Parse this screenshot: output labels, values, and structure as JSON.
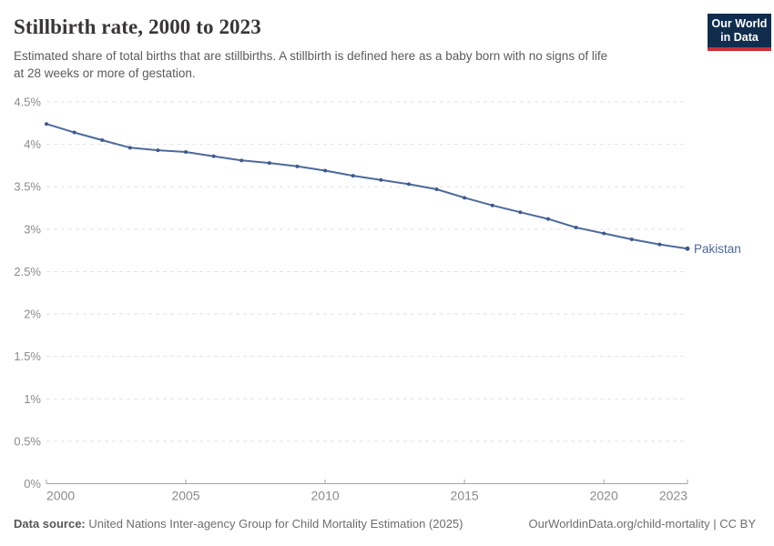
{
  "header": {
    "title": "Stillbirth rate, 2000 to 2023",
    "subtitle_lines": [
      "Estimated share of total births that are stillbirths. A stillbirth is defined here as a baby born with no signs of life",
      "at 28 weeks or more of gestation."
    ],
    "logo": {
      "line1": "Our World",
      "line2": "in Data",
      "bg_color": "#102d4e",
      "accent_color": "#cc2e37"
    }
  },
  "chart_data": {
    "type": "line",
    "title": "Stillbirth rate, 2000 to 2023",
    "xlabel": "",
    "ylabel": "",
    "xlim": [
      2000,
      2023
    ],
    "ylim": [
      0,
      4.5
    ],
    "grid": "horizontal-dashed",
    "legend_position": "end-of-line",
    "series": [
      {
        "name": "Pakistan",
        "color": "#4c6a9c",
        "marker_color": "#41598c",
        "x": [
          2000,
          2001,
          2002,
          2003,
          2004,
          2005,
          2006,
          2007,
          2008,
          2009,
          2010,
          2011,
          2012,
          2013,
          2014,
          2015,
          2016,
          2017,
          2018,
          2019,
          2020,
          2021,
          2022,
          2023
        ],
        "values": [
          4.24,
          4.14,
          4.05,
          3.96,
          3.93,
          3.91,
          3.86,
          3.81,
          3.78,
          3.74,
          3.69,
          3.63,
          3.58,
          3.53,
          3.47,
          3.37,
          3.28,
          3.2,
          3.12,
          3.02,
          2.95,
          2.88,
          2.82,
          2.77
        ]
      }
    ],
    "x_ticks": [
      {
        "value": 2000,
        "label": "2000"
      },
      {
        "value": 2005,
        "label": "2005"
      },
      {
        "value": 2010,
        "label": "2010"
      },
      {
        "value": 2015,
        "label": "2015"
      },
      {
        "value": 2020,
        "label": "2020"
      },
      {
        "value": 2023,
        "label": "2023"
      }
    ],
    "y_ticks": [
      {
        "value": 0,
        "label": "0%"
      },
      {
        "value": 0.5,
        "label": "0.5%"
      },
      {
        "value": 1,
        "label": "1%"
      },
      {
        "value": 1.5,
        "label": "1.5%"
      },
      {
        "value": 2,
        "label": "2%"
      },
      {
        "value": 2.5,
        "label": "2.5%"
      },
      {
        "value": 3,
        "label": "3%"
      },
      {
        "value": 3.5,
        "label": "3.5%"
      },
      {
        "value": 4,
        "label": "4%"
      },
      {
        "value": 4.5,
        "label": "4.5%"
      }
    ],
    "colors": {
      "grid": "#e2e2e2",
      "axis": "#a3a3a3",
      "tick_label": "#8b8b8b"
    }
  },
  "footer": {
    "source_label": "Data source:",
    "source_text": " United Nations Inter-agency Group for Child Mortality Estimation (2025)",
    "link_text": "OurWorldinData.org/child-mortality | CC BY"
  }
}
